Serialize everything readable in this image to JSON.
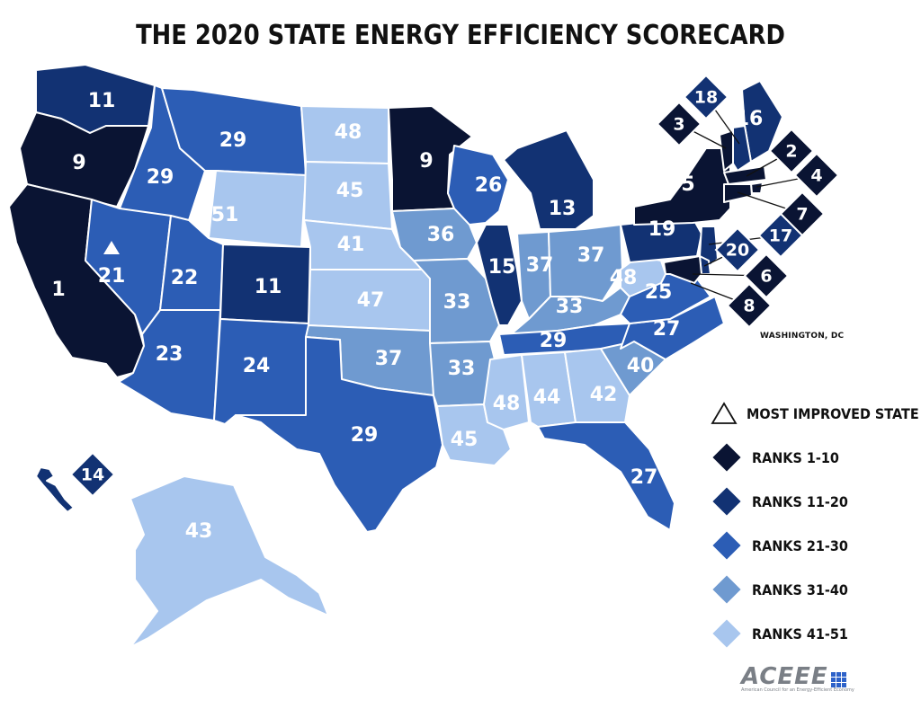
{
  "title": "THE 2020 STATE ENERGY EFFICIENCY SCORECARD",
  "colors": {
    "ranks_1_10": "#0a1433",
    "ranks_11_20": "#123273",
    "ranks_21_30": "#2c5db5",
    "ranks_31_40": "#6f9ad0",
    "ranks_41_51": "#a8c6ee"
  },
  "legend": {
    "most_improved": "MOST IMPROVED STATE",
    "r1": "RANKS 1-10",
    "r2": "RANKS 11-20",
    "r3": "RANKS 21-30",
    "r4": "RANKS 31-40",
    "r5": "RANKS 41-51"
  },
  "dc_label": "WASHINGTON, DC",
  "logo": {
    "name": "ACEEE",
    "tagline": "American Council for an Energy-Efficient Economy"
  },
  "most_improved_state": "NV",
  "states": [
    {
      "id": "WA",
      "rank": "11"
    },
    {
      "id": "OR",
      "rank": "9"
    },
    {
      "id": "CA",
      "rank": "1"
    },
    {
      "id": "ID",
      "rank": "29"
    },
    {
      "id": "NV",
      "rank": "21"
    },
    {
      "id": "MT",
      "rank": "29"
    },
    {
      "id": "WY",
      "rank": "51"
    },
    {
      "id": "UT",
      "rank": "22"
    },
    {
      "id": "AZ",
      "rank": "23"
    },
    {
      "id": "CO",
      "rank": "11"
    },
    {
      "id": "NM",
      "rank": "24"
    },
    {
      "id": "ND",
      "rank": "48"
    },
    {
      "id": "SD",
      "rank": "45"
    },
    {
      "id": "NE",
      "rank": "41"
    },
    {
      "id": "KS",
      "rank": "47"
    },
    {
      "id": "OK",
      "rank": "37"
    },
    {
      "id": "TX",
      "rank": "29"
    },
    {
      "id": "MN",
      "rank": "9"
    },
    {
      "id": "IA",
      "rank": "36"
    },
    {
      "id": "MO",
      "rank": "33"
    },
    {
      "id": "AR",
      "rank": "33"
    },
    {
      "id": "LA",
      "rank": "45"
    },
    {
      "id": "WI",
      "rank": "26"
    },
    {
      "id": "IL",
      "rank": "15"
    },
    {
      "id": "MI",
      "rank": "13"
    },
    {
      "id": "IN",
      "rank": "37"
    },
    {
      "id": "OH",
      "rank": "37"
    },
    {
      "id": "KY",
      "rank": "33"
    },
    {
      "id": "TN",
      "rank": "29"
    },
    {
      "id": "MS",
      "rank": "48"
    },
    {
      "id": "AL",
      "rank": "44"
    },
    {
      "id": "GA",
      "rank": "42"
    },
    {
      "id": "FL",
      "rank": "27"
    },
    {
      "id": "SC",
      "rank": "40"
    },
    {
      "id": "NC",
      "rank": "27"
    },
    {
      "id": "VA",
      "rank": "25"
    },
    {
      "id": "WV",
      "rank": "48"
    },
    {
      "id": "PA",
      "rank": "19"
    },
    {
      "id": "NY",
      "rank": "5"
    },
    {
      "id": "ME",
      "rank": "16"
    },
    {
      "id": "AK",
      "rank": "43"
    },
    {
      "id": "HI",
      "rank": "14"
    },
    {
      "id": "VT",
      "rank": "3"
    },
    {
      "id": "NH",
      "rank": "18"
    },
    {
      "id": "MA",
      "rank": "2"
    },
    {
      "id": "RI",
      "rank": "4"
    },
    {
      "id": "CT",
      "rank": "7"
    },
    {
      "id": "NJ",
      "rank": "17"
    },
    {
      "id": "DE",
      "rank": "20"
    },
    {
      "id": "MD",
      "rank": "6"
    },
    {
      "id": "DC",
      "rank": "8"
    }
  ]
}
